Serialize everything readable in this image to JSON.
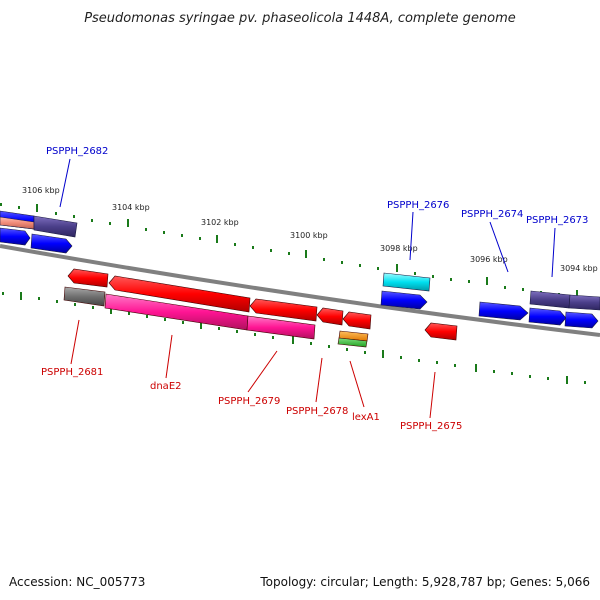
{
  "title": "Pseudomonas syringae pv. phaseolicola 1448A, complete genome",
  "footer": {
    "accession": "Accession: NC_005773",
    "summary": "Topology: circular; Length: 5,928,787 bp; Genes: 5,066"
  },
  "kbp_labels": [
    "3106 kbp",
    "3104 kbp",
    "3102 kbp",
    "3100 kbp",
    "3098 kbp",
    "3096 kbp",
    "3094 kbp"
  ],
  "genes_top": [
    "PSPPH_2682",
    "PSPPH_2676",
    "PSPPH_2674",
    "PSPPH_2673"
  ],
  "genes_bottom": [
    "PSPPH_2681",
    "dnaE2",
    "PSPPH_2679",
    "PSPPH_2678",
    "lexA1",
    "PSPPH_2675"
  ],
  "colors": {
    "backbone": "#808080",
    "tick": "#1a7a1a",
    "forward_cds": "#0000ff",
    "reverse_cds": "#ff0000",
    "reverse_cds_alt": "#ff1493",
    "other_feature": "#4b3f8a"
  }
}
